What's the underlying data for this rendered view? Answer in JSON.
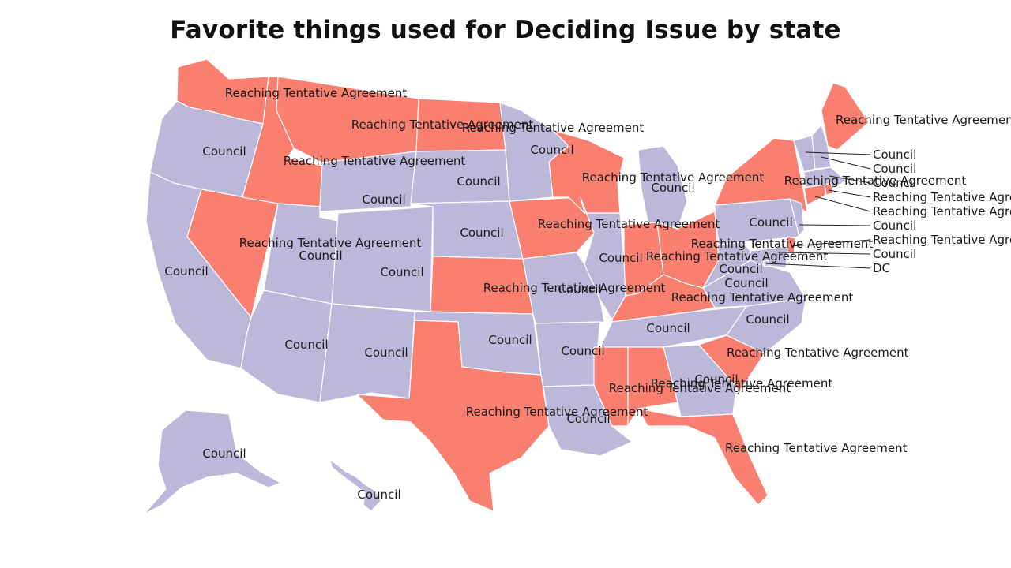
{
  "title": "Favorite things used for Deciding Issue by state",
  "colors": {
    "council": "#bcb8d9",
    "agreement": "#f97f70"
  },
  "states": [
    {
      "id": "WA",
      "category": "agreement",
      "label": "Reaching Tentative Agreement"
    },
    {
      "id": "OR",
      "category": "council",
      "label": "Council"
    },
    {
      "id": "CA",
      "category": "council",
      "label": "Council"
    },
    {
      "id": "NV",
      "category": "agreement",
      "label": "Reaching Tentative Agreement"
    },
    {
      "id": "ID",
      "category": "agreement",
      "label": "Reaching Tentative Agreement"
    },
    {
      "id": "MT",
      "category": "agreement",
      "label": "Reaching Tentative Agreement"
    },
    {
      "id": "WY",
      "category": "council",
      "label": "Council"
    },
    {
      "id": "UT",
      "category": "council",
      "label": "Council"
    },
    {
      "id": "AZ",
      "category": "council",
      "label": "Council"
    },
    {
      "id": "CO",
      "category": "council",
      "label": "Council"
    },
    {
      "id": "NM",
      "category": "council",
      "label": "Council"
    },
    {
      "id": "ND",
      "category": "agreement",
      "label": "Reaching Tentative Agreement"
    },
    {
      "id": "SD",
      "category": "council",
      "label": "Council"
    },
    {
      "id": "NE",
      "category": "council",
      "label": "Council"
    },
    {
      "id": "KS",
      "category": "agreement",
      "label": "Reaching Tentative Agreement"
    },
    {
      "id": "OK",
      "category": "council",
      "label": "Council"
    },
    {
      "id": "TX",
      "category": "agreement",
      "label": "Reaching Tentative Agreement"
    },
    {
      "id": "MN",
      "category": "council",
      "label": "Council"
    },
    {
      "id": "IA",
      "category": "agreement",
      "label": "Reaching Tentative Agreement"
    },
    {
      "id": "MO",
      "category": "council",
      "label": "Council"
    },
    {
      "id": "AR",
      "category": "council",
      "label": "Council"
    },
    {
      "id": "LA",
      "category": "council",
      "label": "Council"
    },
    {
      "id": "WI",
      "category": "agreement",
      "label": "Reaching Tentative Agreement"
    },
    {
      "id": "IL",
      "category": "council",
      "label": "Council"
    },
    {
      "id": "MI",
      "category": "council",
      "label": "Council"
    },
    {
      "id": "IN",
      "category": "agreement",
      "label": "Reaching Tentative Agreement"
    },
    {
      "id": "OH",
      "category": "agreement",
      "label": "Reaching Tentative Agreement"
    },
    {
      "id": "KY",
      "category": "agreement",
      "label": "Reaching Tentative Agreement"
    },
    {
      "id": "TN",
      "category": "council",
      "label": "Council"
    },
    {
      "id": "MS",
      "category": "agreement",
      "label": "Reaching Tentative Agreement"
    },
    {
      "id": "AL",
      "category": "agreement",
      "label": "Reaching Tentative Agreement"
    },
    {
      "id": "GA",
      "category": "council",
      "label": "Council"
    },
    {
      "id": "FL",
      "category": "agreement",
      "label": "Reaching Tentative Agreement"
    },
    {
      "id": "SC",
      "category": "agreement",
      "label": "Reaching Tentative Agreement"
    },
    {
      "id": "NC",
      "category": "council",
      "label": "Council"
    },
    {
      "id": "VA",
      "category": "council",
      "label": "Council"
    },
    {
      "id": "WV",
      "category": "council",
      "label": "Council"
    },
    {
      "id": "PA",
      "category": "council",
      "label": "Council"
    },
    {
      "id": "NY",
      "category": "agreement",
      "label": "Reaching Tentative Agreement"
    },
    {
      "id": "ME",
      "category": "agreement",
      "label": "Reaching Tentative Agreement"
    },
    {
      "id": "VT",
      "category": "council",
      "label": "Council"
    },
    {
      "id": "NH",
      "category": "council",
      "label": "Council"
    },
    {
      "id": "MA",
      "category": "council",
      "label": "Council"
    },
    {
      "id": "RI",
      "category": "agreement",
      "label": "Reaching Tentative Agreement"
    },
    {
      "id": "CT",
      "category": "agreement",
      "label": "Reaching Tentative Agreement"
    },
    {
      "id": "NJ",
      "category": "council",
      "label": "Council"
    },
    {
      "id": "DE",
      "category": "agreement",
      "label": "Reaching Tentative Agreement"
    },
    {
      "id": "MD",
      "category": "council",
      "label": "Council"
    },
    {
      "id": "DC",
      "category": "council",
      "label": "DC"
    },
    {
      "id": "AK",
      "category": "council",
      "label": "Council"
    },
    {
      "id": "HI",
      "category": "council",
      "label": "Council"
    }
  ]
}
